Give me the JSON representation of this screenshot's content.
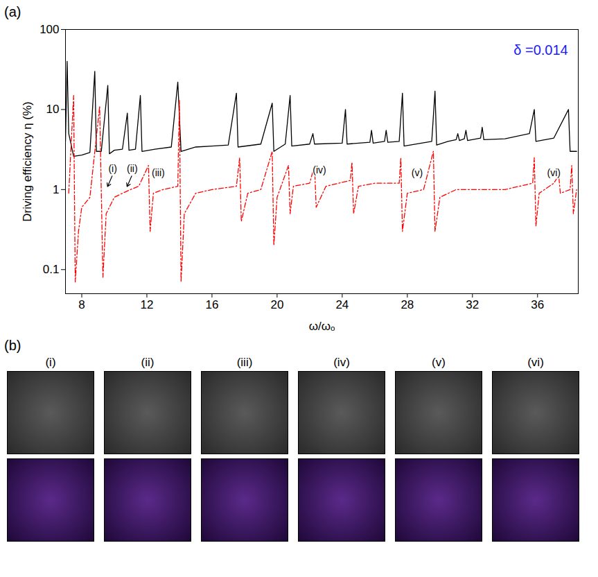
{
  "chart_data": {
    "type": "line",
    "title": "(a)",
    "x_label": "ω/ωₒ",
    "y_label": "Driving efficiency η (%)",
    "log": "y",
    "xlim": [
      7,
      38.5
    ],
    "xticks": [
      8,
      12,
      16,
      20,
      24,
      28,
      32,
      36
    ],
    "ylim": [
      0.05,
      100
    ],
    "yticks": [
      0.1,
      1,
      10,
      100
    ],
    "grid": false,
    "series": [
      {
        "color": "#000000",
        "line_style": "solid",
        "x": [
          7.0,
          7.1,
          7.2,
          7.5,
          8.0,
          8.5,
          8.8,
          8.9,
          9.2,
          9.6,
          9.7,
          10.0,
          10.5,
          10.8,
          10.9,
          11.3,
          11.6,
          11.7,
          12.5,
          13.5,
          13.9,
          14.1,
          15.0,
          16.0,
          17.0,
          17.5,
          17.6,
          19.0,
          19.7,
          19.8,
          20.5,
          20.8,
          20.9,
          22.0,
          22.2,
          22.3,
          24.0,
          24.2,
          24.3,
          25.7,
          25.8,
          25.9,
          26.6,
          26.7,
          26.8,
          27.5,
          27.7,
          27.8,
          29.5,
          29.7,
          29.8,
          30.5,
          31.0,
          31.1,
          31.2,
          31.5,
          31.6,
          31.7,
          32.5,
          32.6,
          32.7,
          34.0,
          35.5,
          35.8,
          35.9,
          37.0,
          37.9,
          38.0,
          38.4
        ],
        "values": [
          4,
          40,
          5,
          2.6,
          2.7,
          2.9,
          30,
          3.0,
          3.0,
          20,
          2.8,
          3.1,
          3.2,
          9,
          3.1,
          3.2,
          15,
          3.0,
          3.2,
          3.4,
          22,
          3.0,
          3.4,
          3.5,
          3.6,
          16,
          3.4,
          3.7,
          12,
          3.0,
          3.7,
          15,
          3.5,
          3.7,
          5,
          3.7,
          3.8,
          10,
          3.7,
          3.9,
          5.5,
          3.8,
          4.0,
          5.5,
          3.9,
          4.0,
          16,
          3.5,
          4.0,
          17,
          3.6,
          4.0,
          4.2,
          5,
          4.1,
          4.3,
          5.5,
          4.1,
          4.4,
          6,
          4.2,
          4.3,
          5,
          10,
          4.0,
          4.4,
          10,
          3.0,
          3.0
        ]
      },
      {
        "color": "#ff0000",
        "line_style": "dashdot",
        "x": [
          7.2,
          7.5,
          7.6,
          7.8,
          8.0,
          8.5,
          9.1,
          9.3,
          9.5,
          10.0,
          10.5,
          11.0,
          11.5,
          12.1,
          12.2,
          12.4,
          13.0,
          13.9,
          14.0,
          14.1,
          14.3,
          15.0,
          16.0,
          17.5,
          17.7,
          17.8,
          18.2,
          19.0,
          19.7,
          19.8,
          20.0,
          20.7,
          20.8,
          21.0,
          22.0,
          22.3,
          22.4,
          23.0,
          24.5,
          24.6,
          24.7,
          25.0,
          26.0,
          27.5,
          27.6,
          27.7,
          28.0,
          29.0,
          29.6,
          29.7,
          30.0,
          31.0,
          32.0,
          33.0,
          34.0,
          35.7,
          35.8,
          35.9,
          36.1,
          37.0,
          37.3,
          37.4,
          38.0,
          38.1,
          38.2,
          38.4
        ],
        "values": [
          0.9,
          15,
          0.07,
          0.3,
          0.6,
          0.8,
          11,
          0.08,
          0.5,
          0.8,
          0.9,
          1.0,
          1.1,
          2,
          0.3,
          0.9,
          1.0,
          1.1,
          13,
          0.07,
          0.5,
          0.9,
          1.0,
          1.1,
          2.5,
          0.4,
          0.9,
          1.0,
          3,
          0.2,
          0.8,
          2,
          0.5,
          1.1,
          1.2,
          2,
          0.6,
          1.1,
          1.3,
          2.2,
          0.5,
          1.1,
          1.2,
          1.2,
          2.5,
          0.3,
          0.9,
          1.0,
          3,
          0.3,
          0.8,
          1.0,
          1.0,
          1.0,
          1.0,
          1.2,
          2.5,
          0.35,
          0.9,
          1.2,
          1.5,
          0.9,
          1.0,
          2,
          0.5,
          1.0
        ]
      }
    ],
    "annotations": [
      {
        "text": "δ =0.014",
        "x": 36.2,
        "y": 55,
        "color": "#1a1aff"
      },
      {
        "text": "(i)",
        "x": 9.9,
        "y": 1.8,
        "arrow_to": [
          9.55,
          1.05
        ]
      },
      {
        "text": "(ii)",
        "x": 11.1,
        "y": 1.8,
        "arrow_to": [
          10.75,
          1.05
        ]
      },
      {
        "text": "(iii)",
        "x": 12.7,
        "y": 1.6
      },
      {
        "text": "(iv)",
        "x": 22.6,
        "y": 1.75
      },
      {
        "text": "(v)",
        "x": 28.6,
        "y": 1.6
      },
      {
        "text": "(vi)",
        "x": 37.0,
        "y": 1.6
      }
    ]
  },
  "panel_b": {
    "label": "(b)",
    "items": [
      "(i)",
      "(ii)",
      "(iii)",
      "(iv)",
      "(v)",
      "(vi)"
    ]
  }
}
